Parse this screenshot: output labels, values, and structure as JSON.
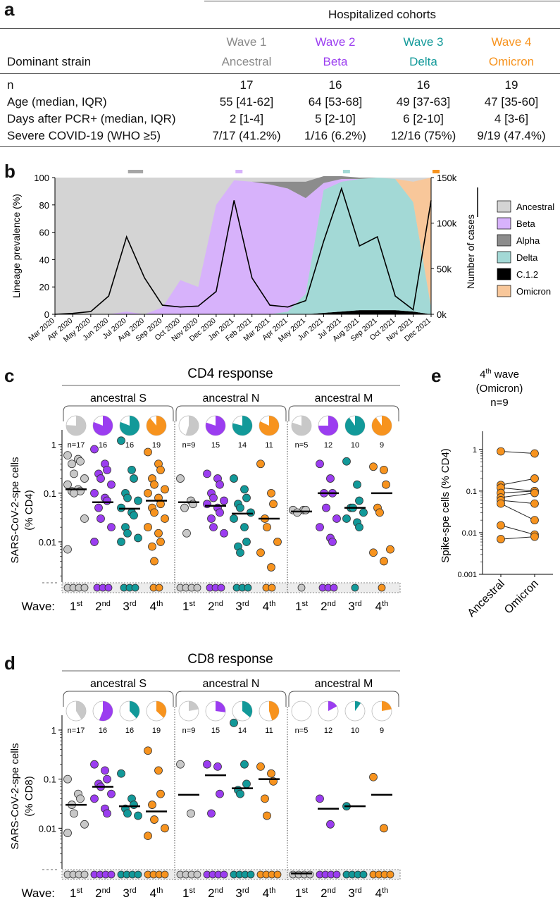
{
  "panels": {
    "a": "a",
    "b": "b",
    "c": "c",
    "d": "d",
    "e": "e"
  },
  "table": {
    "group_header": "Hospitalized cohorts",
    "row_label_strain": "Dominant strain",
    "waves": [
      {
        "name": "Wave 1",
        "strain": "Ancestral",
        "color": "#8a8a8a"
      },
      {
        "name": "Wave 2",
        "strain": "Beta",
        "color": "#9b3df0"
      },
      {
        "name": "Wave 3",
        "strain": "Delta",
        "color": "#129999"
      },
      {
        "name": "Wave 4",
        "strain": "Omicron",
        "color": "#f7931e"
      }
    ],
    "rows": [
      {
        "label": "n",
        "values": [
          "17",
          "16",
          "16",
          "19"
        ]
      },
      {
        "label": "Age (median, IQR)",
        "values": [
          "55 [41-62]",
          "64 [53-68]",
          "49 [37-63]",
          "47 [35-60]"
        ]
      },
      {
        "label": "Days after PCR+ (median, IQR)",
        "values": [
          "2 [1-4]",
          "5 [2-10]",
          "6 [2-10]",
          "4 [3-6]"
        ]
      },
      {
        "label": "Severe COVID-19 (WHO ≥5)",
        "values": [
          "7/17 (41.2%)",
          "1/16 (6.2%)",
          "12/16 (75%)",
          "9/19 (47.4%)"
        ]
      }
    ]
  },
  "chart_data": [
    {
      "panel": "b",
      "type": "area",
      "ylabel": "Lineage prevalence (%)",
      "y2label": "Number of cases",
      "yticks": [
        "0",
        "20",
        "40",
        "60",
        "80",
        "100"
      ],
      "y2ticks": [
        "0k",
        "50k",
        "100k",
        "150k"
      ],
      "ylim": [
        0,
        100
      ],
      "y2lim": [
        0,
        150000
      ],
      "x": [
        "Mar 2020",
        "Apr 2020",
        "May 2020",
        "Jun 2020",
        "Jul 2020",
        "Aug 2020",
        "Sep 2020",
        "Oct 2020",
        "Nov 2020",
        "Dec 2020",
        "Jan 2021",
        "Feb 2021",
        "Mar 2021",
        "Apr 2021",
        "May 2021",
        "Jun 2021",
        "Jul 2021",
        "Aug 2021",
        "Sep 2021",
        "Oct 2021",
        "Nov 2021",
        "Dec 2021"
      ],
      "legend": [
        {
          "name": "Ancestral",
          "color": "#d4d4d4"
        },
        {
          "name": "Beta",
          "color": "#d7b2fb"
        },
        {
          "name": "Alpha",
          "color": "#8c8c8c"
        },
        {
          "name": "Delta",
          "color": "#a3d9d6"
        },
        {
          "name": "C.1.2",
          "color": "#000000"
        },
        {
          "name": "Omicron",
          "color": "#f8c79a"
        }
      ],
      "prevalence_series": [
        {
          "name": "Beta",
          "values": [
            0,
            0,
            0,
            0,
            2,
            0,
            5,
            25,
            20,
            80,
            98,
            97,
            95,
            90,
            70,
            5,
            2,
            0,
            0,
            0,
            0,
            0
          ]
        },
        {
          "name": "Alpha",
          "values": [
            0,
            0,
            0,
            0,
            0,
            0,
            0,
            0,
            0,
            0,
            0,
            0,
            2,
            5,
            12,
            5,
            2,
            1,
            0,
            0,
            0,
            0
          ]
        },
        {
          "name": "Delta",
          "values": [
            0,
            0,
            0,
            0,
            0,
            0,
            0,
            0,
            0,
            0,
            0,
            0,
            0,
            2,
            15,
            90,
            95,
            96,
            97,
            96,
            80,
            5
          ]
        },
        {
          "name": "C.1.2",
          "values": [
            0,
            0,
            0,
            0,
            0,
            0,
            0,
            0,
            0,
            0,
            0,
            0,
            0,
            0,
            0,
            1,
            2,
            3,
            3,
            3,
            2,
            0
          ]
        },
        {
          "name": "Omicron",
          "values": [
            0,
            0,
            0,
            0,
            0,
            0,
            0,
            0,
            0,
            0,
            0,
            0,
            0,
            0,
            0,
            0,
            0,
            0,
            0,
            0,
            15,
            95
          ]
        }
      ],
      "cases_series": {
        "name": "Number of cases",
        "values": [
          0,
          1000,
          3000,
          20000,
          85000,
          40000,
          10000,
          8000,
          9000,
          25000,
          125000,
          40000,
          10000,
          8000,
          15000,
          80000,
          138000,
          75000,
          85000,
          20000,
          5000,
          125000
        ]
      },
      "wave_markers": [
        {
          "wave": "Wave 1",
          "color": "#a6a6a6",
          "month_start": "Jul 2020",
          "month_end": "Aug 2020"
        },
        {
          "wave": "Wave 2",
          "color": "#d7b2fb",
          "month_start": "Jan 2021",
          "month_end": "Jan 2021"
        },
        {
          "wave": "Wave 3",
          "color": "#a3d9d6",
          "month_start": "Jul 2021",
          "month_end": "Jul 2021"
        },
        {
          "wave": "Wave 4",
          "color": "#f7931e",
          "month_start": "Dec 2021",
          "month_end": "Dec 2021"
        }
      ]
    },
    {
      "panel": "c",
      "type": "scatter",
      "title": "CD4 response",
      "ylabel": "SARS-CoV-2-spe cells (% CD4)",
      "yticks": [
        "1",
        "0.1",
        "0.01"
      ],
      "ylim": [
        0.001,
        2
      ],
      "xlabel_prefix": "Wave:",
      "wave_labels": [
        [
          "1",
          "st"
        ],
        [
          "2",
          "nd"
        ],
        [
          "3",
          "rd"
        ],
        [
          "4",
          "th"
        ]
      ],
      "groups": [
        {
          "antigen": "ancestral S",
          "waves": [
            {
              "n": "n=17",
              "responder_fraction": 0.76,
              "values": [
                0.6,
                0.5,
                0.45,
                0.4,
                0.25,
                0.2,
                0.15,
                0.12,
                0.11,
                0.11,
                0.1,
                0.03,
                0.007
              ],
              "nonresponders": 4,
              "median": 0.12
            },
            {
              "n": "16",
              "responder_fraction": 0.81,
              "values": [
                0.8,
                0.4,
                0.3,
                0.25,
                0.2,
                0.15,
                0.1,
                0.08,
                0.07,
                0.05,
                0.03,
                0.02,
                0.01
              ],
              "nonresponders": 3,
              "median": 0.065
            },
            {
              "n": "16",
              "responder_fraction": 0.81,
              "values": [
                1.2,
                0.3,
                0.2,
                0.1,
                0.08,
                0.07,
                0.05,
                0.04,
                0.035,
                0.02,
                0.015,
                0.012,
                0.01
              ],
              "nonresponders": 3,
              "median": 0.048
            },
            {
              "n": "19",
              "responder_fraction": 0.89,
              "values": [
                0.7,
                0.4,
                0.3,
                0.2,
                0.15,
                0.12,
                0.1,
                0.08,
                0.06,
                0.05,
                0.04,
                0.03,
                0.02,
                0.015,
                0.01,
                0.008,
                0.004
              ],
              "nonresponders": 2,
              "median": 0.07
            }
          ]
        },
        {
          "antigen": "ancestral N",
          "waves": [
            {
              "n": "n=9",
              "responder_fraction": 0.55,
              "values": [
                0.2,
                0.07,
                0.06,
                0.05,
                0.015
              ],
              "nonresponders": 4,
              "median": 0.065
            },
            {
              "n": "15",
              "responder_fraction": 0.8,
              "values": [
                0.25,
                0.2,
                0.15,
                0.1,
                0.08,
                0.07,
                0.06,
                0.05,
                0.04,
                0.03,
                0.02,
                0.015
              ],
              "nonresponders": 3,
              "median": 0.055
            },
            {
              "n": "14",
              "responder_fraction": 0.79,
              "values": [
                0.2,
                0.12,
                0.08,
                0.06,
                0.05,
                0.04,
                0.03,
                0.02,
                0.01,
                0.008,
                0.006
              ],
              "nonresponders": 3,
              "median": 0.038
            },
            {
              "n": "11",
              "responder_fraction": 0.82,
              "values": [
                0.4,
                0.1,
                0.06,
                0.03,
                0.02,
                0.01,
                0.006,
                0.003
              ],
              "nonresponders": 2,
              "median": 0.03
            }
          ]
        },
        {
          "antigen": "ancestral M",
          "waves": [
            {
              "n": "n=5",
              "responder_fraction": 0.8,
              "values": [
                0.045,
                0.045,
                0.045,
                0.04
              ],
              "nonresponders": 1,
              "median": 0.042
            },
            {
              "n": "12",
              "responder_fraction": 0.75,
              "values": [
                0.4,
                0.2,
                0.1,
                0.05,
                0.03,
                0.02,
                0.01,
                0.012,
                0.1
              ],
              "nonresponders": 3,
              "median": 0.1
            },
            {
              "n": "10",
              "responder_fraction": 0.9,
              "values": [
                0.45,
                0.15,
                0.07,
                0.05,
                0.04,
                0.03,
                0.025,
                0.02,
                0.05
              ],
              "nonresponders": 1,
              "median": 0.05
            },
            {
              "n": "9",
              "responder_fraction": 0.9,
              "values": [
                0.35,
                0.3,
                0.15,
                0.05,
                0.04,
                0.007,
                0.006,
                0.004
              ],
              "nonresponders": 1,
              "median": 0.1
            }
          ]
        }
      ]
    },
    {
      "panel": "d",
      "type": "scatter",
      "title": "CD8 response",
      "ylabel": "SARS-CoV-2-spe cells (% CD8)",
      "yticks": [
        "1",
        "0.1",
        "0.01"
      ],
      "ylim": [
        0.001,
        2
      ],
      "xlabel_prefix": "Wave:",
      "wave_labels": [
        [
          "1",
          "st"
        ],
        [
          "2",
          "nd"
        ],
        [
          "3",
          "rd"
        ],
        [
          "4",
          "th"
        ]
      ],
      "groups": [
        {
          "antigen": "ancestral S",
          "waves": [
            {
              "n": "n=17",
              "responder_fraction": 0.41,
              "values": [
                0.1,
                0.05,
                0.04,
                0.03,
                0.02,
                0.012,
                0.008
              ],
              "nonresponders": 10,
              "median": 0.03
            },
            {
              "n": "16",
              "responder_fraction": 0.56,
              "values": [
                0.2,
                0.15,
                0.1,
                0.08,
                0.07,
                0.05,
                0.04,
                0.025,
                0.02
              ],
              "nonresponders": 7,
              "median": 0.07
            },
            {
              "n": "16",
              "responder_fraction": 0.38,
              "values": [
                0.13,
                0.04,
                0.03,
                0.025,
                0.02,
                0.018
              ],
              "nonresponders": 10,
              "median": 0.028
            },
            {
              "n": "19",
              "responder_fraction": 0.37,
              "values": [
                0.38,
                0.15,
                0.05,
                0.03,
                0.015,
                0.01,
                0.007
              ],
              "nonresponders": 12,
              "median": 0.022
            }
          ]
        },
        {
          "antigen": "ancestral N",
          "waves": [
            {
              "n": "n=9",
              "responder_fraction": 0.22,
              "values": [
                0.2,
                0.02
              ],
              "nonresponders": 7,
              "median": 0.048
            },
            {
              "n": "15",
              "responder_fraction": 0.27,
              "values": [
                0.2,
                0.18,
                0.05,
                0.02
              ],
              "nonresponders": 11,
              "median": 0.12
            },
            {
              "n": "14",
              "responder_fraction": 0.36,
              "values": [
                1.4,
                0.2,
                0.08,
                0.06,
                0.05
              ],
              "nonresponders": 9,
              "median": 0.065
            },
            {
              "n": "11",
              "responder_fraction": 0.45,
              "values": [
                0.18,
                0.13,
                0.09,
                0.04,
                0.018
              ],
              "nonresponders": 6,
              "median": 0.1
            }
          ]
        },
        {
          "antigen": "ancestral M",
          "waves": [
            {
              "n": "n=5",
              "responder_fraction": 0,
              "values": [],
              "nonresponders": 5,
              "median": 0.0012
            },
            {
              "n": "12",
              "responder_fraction": 0.17,
              "values": [
                0.04,
                0.012
              ],
              "nonresponders": 10,
              "median": 0.025
            },
            {
              "n": "10",
              "responder_fraction": 0.1,
              "values": [
                0.028
              ],
              "nonresponders": 9,
              "median": 0.028
            },
            {
              "n": "9",
              "responder_fraction": 0.22,
              "values": [
                0.11,
                0.01
              ],
              "nonresponders": 7,
              "median": 0.048
            }
          ]
        }
      ]
    },
    {
      "panel": "e",
      "type": "line",
      "title_parts": [
        "4",
        "th",
        "wave",
        "(Omicron)",
        "n=9"
      ],
      "ylabel": "Spike-spe cells (% CD4)",
      "yticks": [
        "1",
        "0.1",
        "0.01",
        "0.001"
      ],
      "ylim": [
        0.001,
        2
      ],
      "categories": [
        "Ancestral",
        "Omicron"
      ],
      "pairs": [
        [
          0.9,
          0.8
        ],
        [
          0.14,
          0.2
        ],
        [
          0.12,
          0.1
        ],
        [
          0.09,
          0.1
        ],
        [
          0.07,
          0.09
        ],
        [
          0.06,
          0.05
        ],
        [
          0.05,
          0.02
        ],
        [
          0.015,
          0.009
        ],
        [
          0.007,
          0.008
        ]
      ]
    }
  ]
}
